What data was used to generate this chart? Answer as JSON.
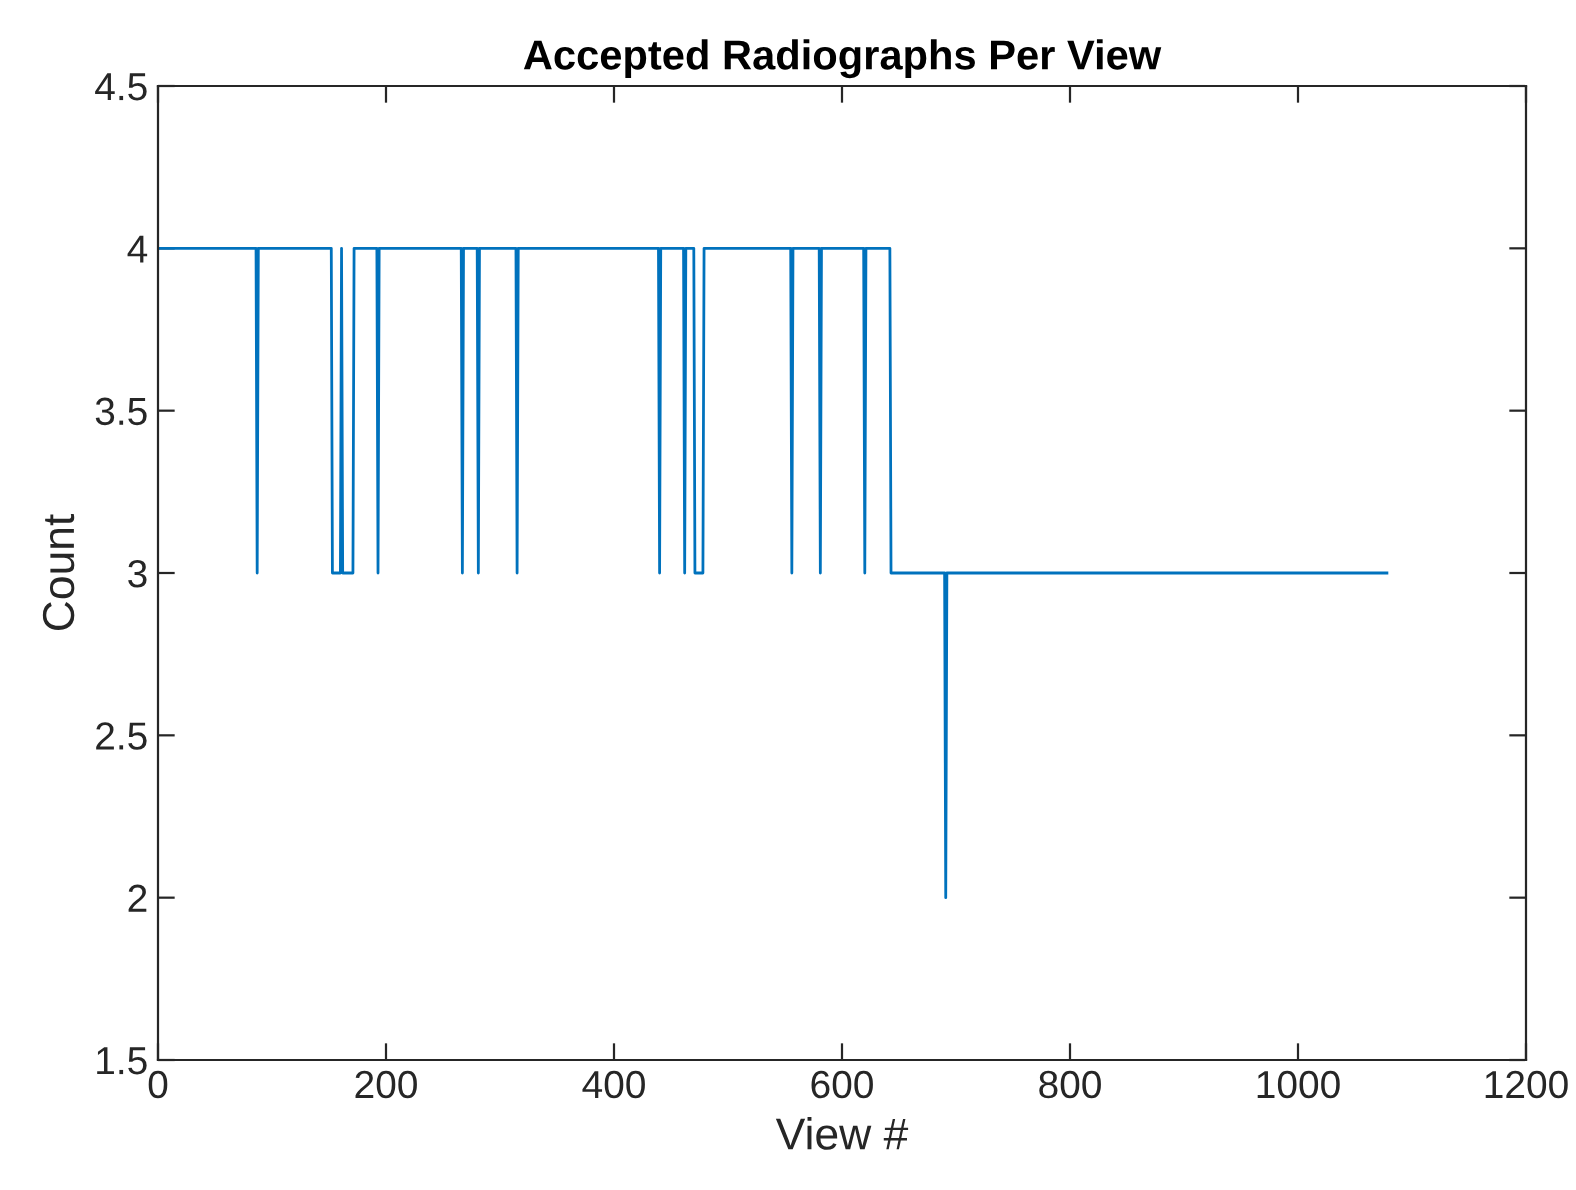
{
  "chart_data": {
    "type": "line",
    "title": "Accepted Radiographs Per View",
    "xlabel": "View #",
    "ylabel": "Count",
    "x": [
      0,
      86,
      87,
      88,
      152,
      153,
      160,
      161,
      162,
      171,
      172,
      192,
      193,
      194,
      266,
      267,
      268,
      280,
      281,
      282,
      314,
      315,
      316,
      439,
      440,
      441,
      461,
      462,
      463,
      470,
      471,
      478,
      479,
      555,
      556,
      557,
      580,
      581,
      582,
      619,
      620,
      621,
      642,
      643,
      690,
      691,
      692,
      1078
    ],
    "series": [
      {
        "color": "#0072bd",
        "values": [
          4,
          4,
          3,
          4,
          4,
          3,
          3,
          4,
          3,
          3,
          4,
          4,
          3,
          4,
          4,
          3,
          4,
          4,
          3,
          4,
          4,
          3,
          4,
          4,
          3,
          4,
          4,
          3,
          4,
          4,
          3,
          3,
          4,
          4,
          3,
          4,
          4,
          3,
          4,
          4,
          3,
          4,
          4,
          3,
          3,
          2,
          3,
          3
        ]
      }
    ],
    "xlim": [
      0,
      1200
    ],
    "xticks": [
      0,
      200,
      400,
      600,
      800,
      1000,
      1200
    ],
    "ylim": [
      1.5,
      4.5
    ],
    "yticks": [
      1.5,
      2,
      2.5,
      3,
      3.5,
      4,
      4.5
    ],
    "grid": false,
    "legend": false,
    "marker": "none",
    "line_style": "solid"
  }
}
